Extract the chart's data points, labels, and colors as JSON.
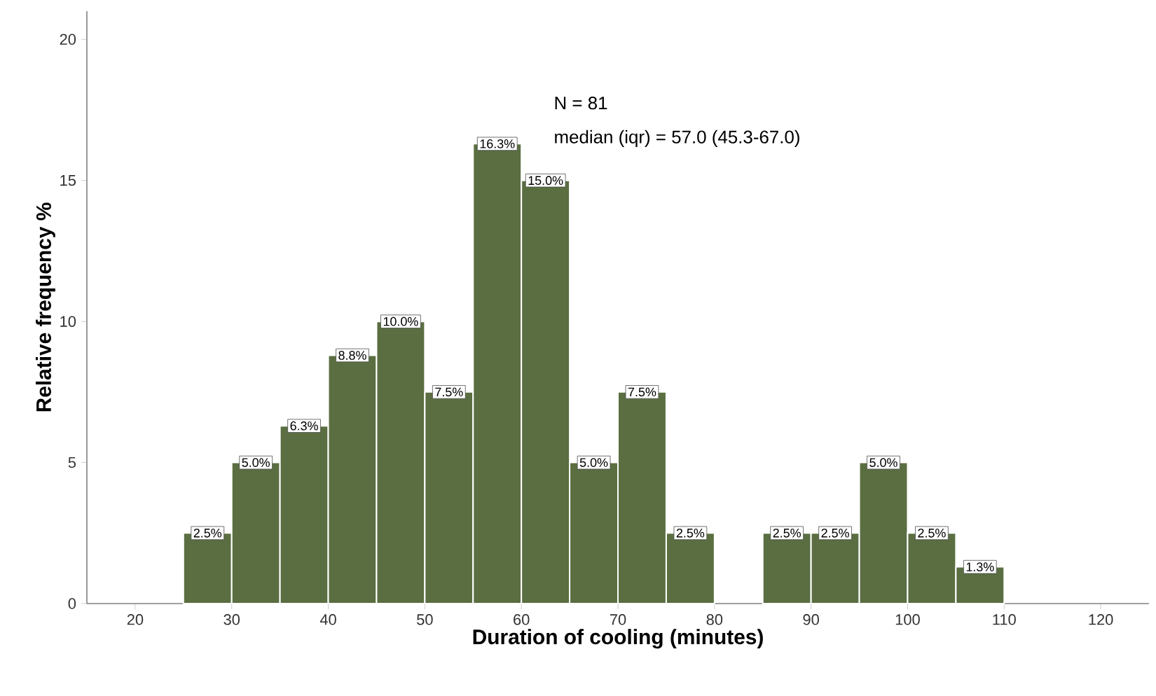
{
  "chart_data": {
    "type": "histogram",
    "xlabel": "Duration of cooling (minutes)",
    "ylabel": "Relative frequency %",
    "annotations": [
      "N = 81",
      "median (iqr)  = 57.0 (45.3-67.0)"
    ],
    "bins": [
      25,
      30,
      35,
      40,
      45,
      50,
      55,
      60,
      65,
      70,
      75,
      80,
      85,
      90,
      95,
      100,
      105,
      110
    ],
    "values": [
      2.5,
      5.0,
      6.3,
      8.8,
      10.0,
      7.5,
      16.3,
      15.0,
      5.0,
      7.5,
      2.5,
      0,
      2.5,
      2.5,
      5.0,
      2.5,
      1.3
    ],
    "value_labels": [
      "2.5%",
      "5.0%",
      "6.3%",
      "8.8%",
      "10.0%",
      "7.5%",
      "16.3%",
      "15.0%",
      "5.0%",
      "7.5%",
      "2.5%",
      null,
      "2.5%",
      "2.5%",
      "5.0%",
      "2.5%",
      "1.3%"
    ],
    "color": "#5a6e41",
    "xlim": [
      15,
      125
    ],
    "ylim": [
      0,
      21
    ],
    "xticks": [
      20,
      30,
      40,
      50,
      60,
      70,
      80,
      90,
      100,
      110,
      120
    ],
    "yticks": [
      0,
      5,
      10,
      15,
      20
    ]
  }
}
